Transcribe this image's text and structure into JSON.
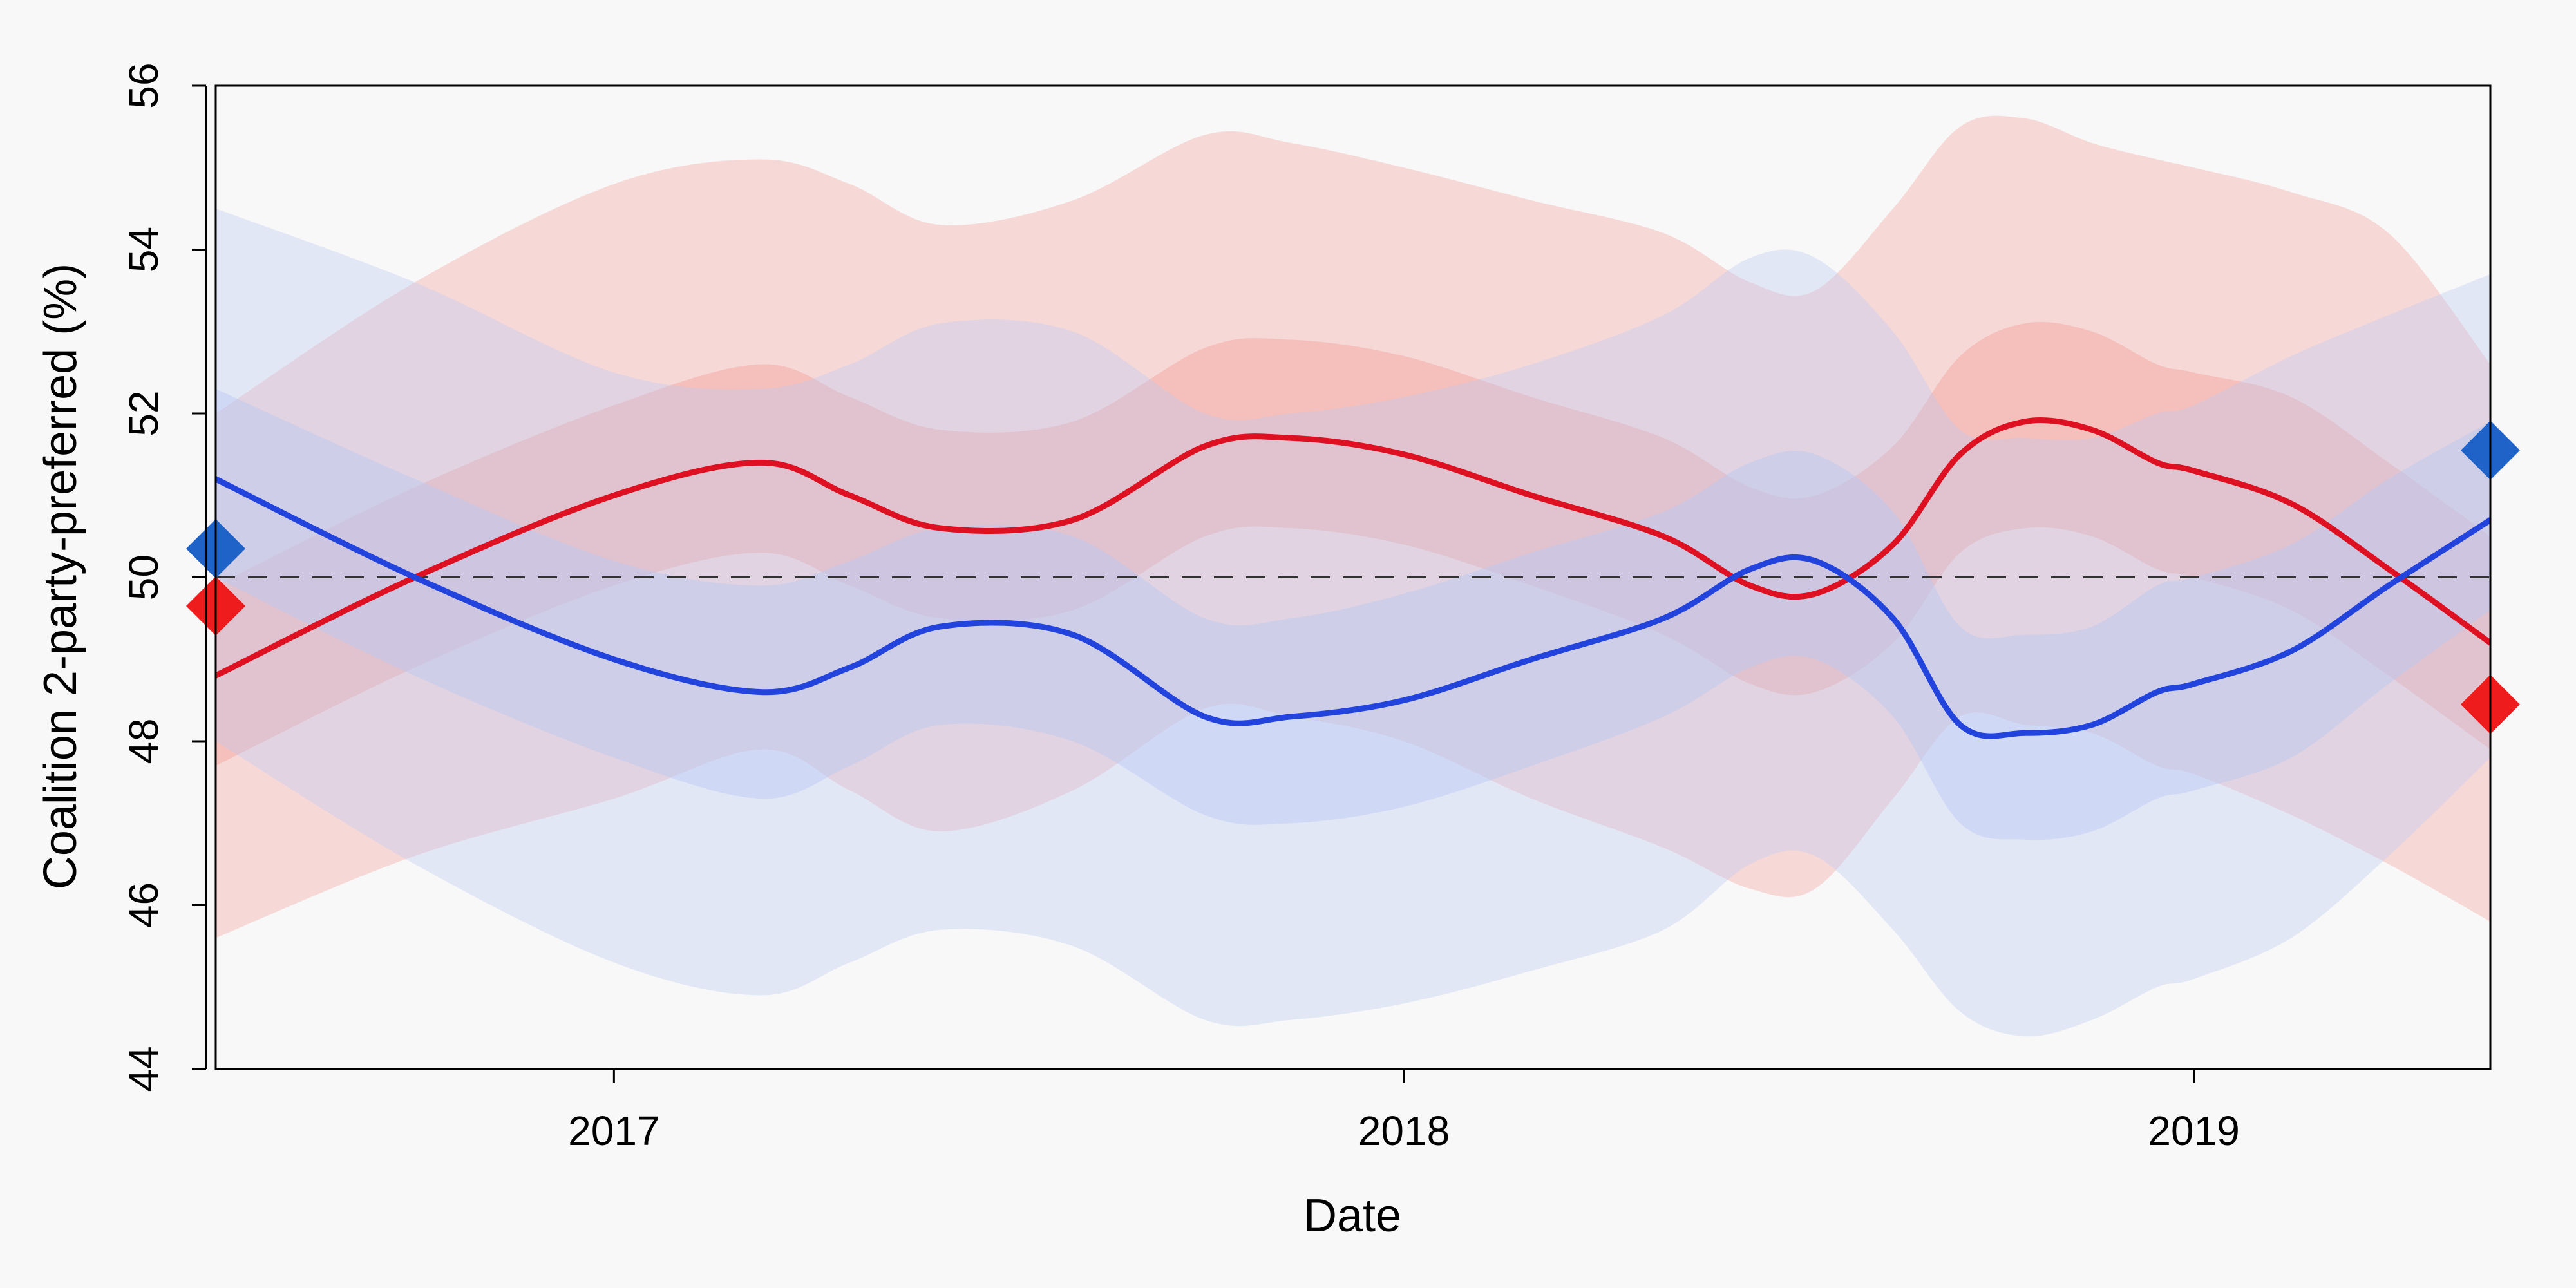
{
  "chart_data": {
    "type": "line",
    "title": "",
    "xlabel": "Date",
    "ylabel": "Coalition 2-party-preferred (%)",
    "xlim": [
      "2016-07-01",
      "2019-05-18"
    ],
    "ylim": [
      44,
      56
    ],
    "x_ticks": [
      {
        "value": "2017-01-01",
        "label": "2017"
      },
      {
        "value": "2018-01-01",
        "label": "2018"
      },
      {
        "value": "2019-01-01",
        "label": "2019"
      }
    ],
    "y_ticks": [
      {
        "value": 44,
        "label": "44"
      },
      {
        "value": 46,
        "label": "46"
      },
      {
        "value": 48,
        "label": "48"
      },
      {
        "value": 50,
        "label": "50"
      },
      {
        "value": 52,
        "label": "52"
      },
      {
        "value": 54,
        "label": "54"
      },
      {
        "value": 56,
        "label": "56"
      }
    ],
    "reference_line": {
      "y": 50,
      "style": "dashed",
      "color": "#333333"
    },
    "grid": false,
    "series": [
      {
        "color": "#dd1122",
        "band_color": "#f4a19c",
        "x": [
          "2016-07-01",
          "2016-10-01",
          "2017-01-01",
          "2017-03-10",
          "2017-04-20",
          "2017-06-01",
          "2017-08-01",
          "2017-10-01",
          "2017-11-10",
          "2018-01-01",
          "2018-03-01",
          "2018-05-01",
          "2018-06-10",
          "2018-07-10",
          "2018-08-15",
          "2018-09-15",
          "2018-10-15",
          "2018-11-15",
          "2018-12-15",
          "2019-01-01",
          "2019-02-15",
          "2019-04-01",
          "2019-05-18"
        ],
        "values": [
          48.8,
          50.0,
          51.0,
          51.4,
          51.0,
          50.6,
          50.7,
          51.6,
          51.7,
          51.5,
          51.0,
          50.5,
          49.9,
          49.8,
          50.4,
          51.5,
          51.9,
          51.8,
          51.4,
          51.3,
          50.9,
          50.1,
          49.2
        ],
        "band50_low": [
          47.7,
          48.9,
          49.9,
          50.3,
          49.9,
          49.5,
          49.6,
          50.5,
          50.6,
          50.4,
          49.9,
          49.3,
          48.7,
          48.6,
          49.2,
          50.3,
          50.6,
          50.5,
          50.1,
          50.0,
          49.6,
          48.8,
          47.9
        ],
        "band50_high": [
          49.9,
          51.1,
          52.1,
          52.6,
          52.2,
          51.8,
          51.9,
          52.8,
          52.9,
          52.7,
          52.2,
          51.7,
          51.1,
          51.0,
          51.6,
          52.7,
          53.1,
          53.0,
          52.6,
          52.5,
          52.2,
          51.4,
          50.5
        ],
        "band95_low": [
          45.6,
          46.6,
          47.3,
          47.9,
          47.4,
          46.9,
          47.4,
          48.4,
          48.3,
          48.0,
          47.3,
          46.7,
          46.2,
          46.2,
          47.3,
          48.3,
          48.2,
          48.1,
          47.7,
          47.6,
          47.1,
          46.5,
          45.8
        ],
        "band95_high": [
          52.0,
          53.6,
          54.8,
          55.1,
          54.8,
          54.3,
          54.6,
          55.4,
          55.3,
          55.0,
          54.6,
          54.2,
          53.6,
          53.5,
          54.5,
          55.5,
          55.6,
          55.3,
          55.1,
          55.0,
          54.7,
          54.2,
          52.6
        ]
      },
      {
        "color": "#2244dd",
        "band_color": "#b9c8f4",
        "x": [
          "2016-07-01",
          "2016-10-01",
          "2017-01-01",
          "2017-03-10",
          "2017-04-20",
          "2017-06-01",
          "2017-08-01",
          "2017-10-01",
          "2017-11-10",
          "2018-01-01",
          "2018-03-01",
          "2018-05-01",
          "2018-06-10",
          "2018-07-10",
          "2018-08-15",
          "2018-09-15",
          "2018-10-15",
          "2018-11-15",
          "2018-12-15",
          "2019-01-01",
          "2019-02-15",
          "2019-04-01",
          "2019-05-18"
        ],
        "values": [
          51.2,
          50.0,
          49.0,
          48.6,
          48.9,
          49.4,
          49.3,
          48.3,
          48.3,
          48.5,
          49.0,
          49.5,
          50.1,
          50.2,
          49.5,
          48.2,
          48.1,
          48.2,
          48.6,
          48.7,
          49.1,
          49.9,
          50.7
        ],
        "band50_low": [
          50.0,
          48.8,
          47.8,
          47.3,
          47.7,
          48.2,
          48.0,
          47.1,
          47.0,
          47.2,
          47.7,
          48.3,
          48.9,
          49.0,
          48.3,
          47.0,
          46.8,
          46.9,
          47.3,
          47.4,
          47.8,
          48.7,
          49.6
        ],
        "band50_high": [
          52.3,
          51.2,
          50.2,
          49.9,
          50.2,
          50.6,
          50.5,
          49.5,
          49.5,
          49.8,
          50.3,
          50.8,
          51.4,
          51.5,
          50.8,
          49.4,
          49.3,
          49.4,
          49.9,
          50.0,
          50.4,
          51.2,
          51.9
        ],
        "band95_low": [
          48.0,
          46.5,
          45.3,
          44.9,
          45.3,
          45.7,
          45.5,
          44.6,
          44.6,
          44.8,
          45.2,
          45.7,
          46.5,
          46.6,
          45.7,
          44.7,
          44.4,
          44.6,
          45.0,
          45.1,
          45.6,
          46.6,
          47.8
        ],
        "band95_high": [
          54.5,
          53.6,
          52.5,
          52.3,
          52.6,
          53.1,
          53.0,
          52.0,
          52.0,
          52.2,
          52.6,
          53.2,
          53.9,
          53.9,
          53.0,
          51.8,
          51.7,
          51.7,
          52.0,
          52.1,
          52.7,
          53.2,
          53.7
        ]
      }
    ],
    "endpoint_markers": [
      {
        "date": "2016-07-01",
        "value": 50.35,
        "color": "#1f63c9"
      },
      {
        "date": "2016-07-01",
        "value": 49.65,
        "color": "#ee1c1c"
      },
      {
        "date": "2019-05-18",
        "value": 51.55,
        "color": "#1f63c9"
      },
      {
        "date": "2019-05-18",
        "value": 48.45,
        "color": "#ee1c1c"
      }
    ]
  }
}
